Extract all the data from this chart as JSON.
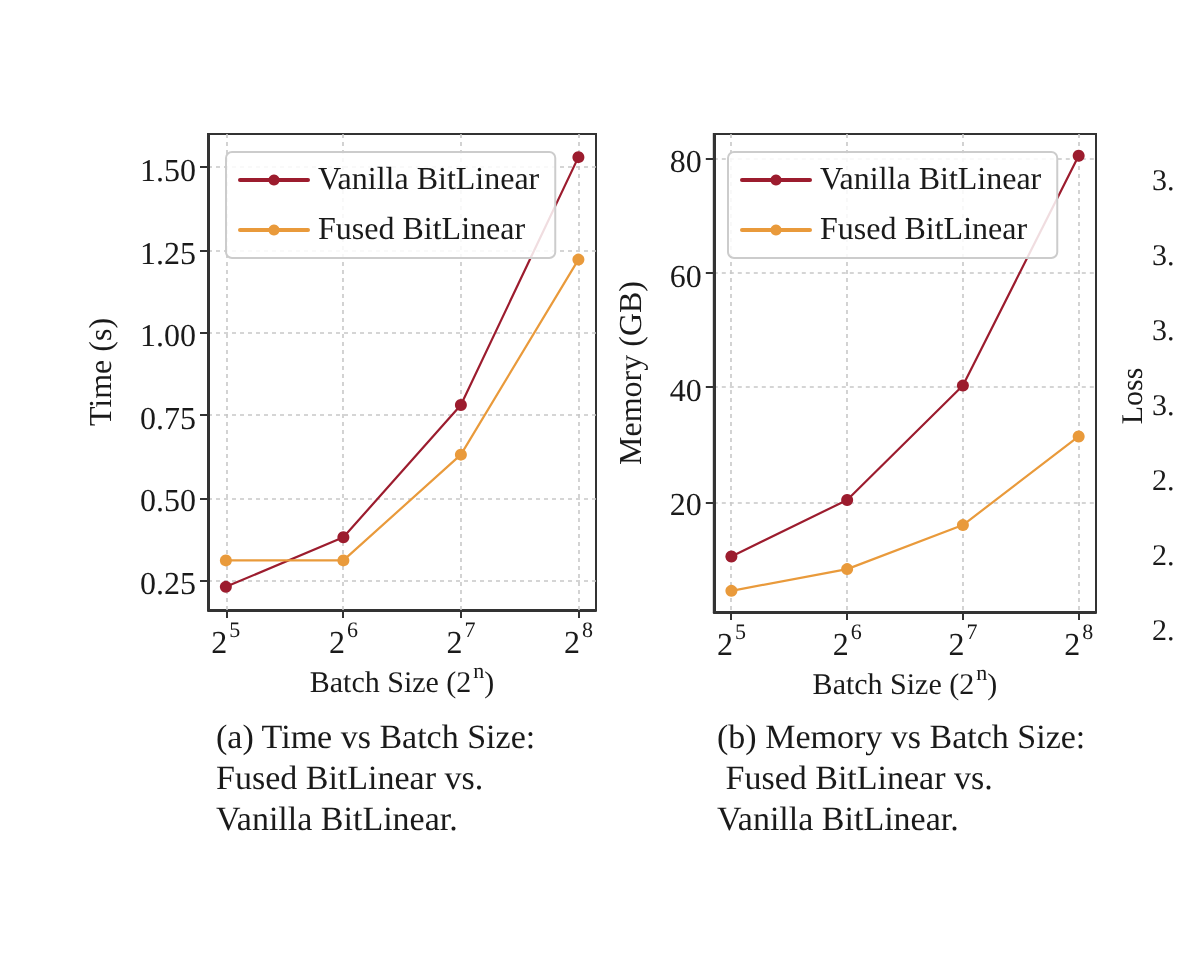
{
  "chart_data": [
    {
      "type": "line",
      "xlabel": "Batch Size (2$^{n}$)",
      "ylabel": "Time (s)",
      "x": [
        32,
        64,
        128,
        256
      ],
      "log": "x",
      "xlim": [
        28.8,
        284
      ],
      "xticks": [
        {
          "value": 32,
          "label": "2$^{5}$"
        },
        {
          "value": 64,
          "label": "2$^{6}$"
        },
        {
          "value": 128,
          "label": "2$^{7}$"
        },
        {
          "value": 256,
          "label": "2$^{8}$"
        }
      ],
      "ylim": [
        0.16,
        1.6
      ],
      "yticks": [
        0.25,
        {
          "value": 0.5,
          "label": "0.50"
        },
        0.75,
        {
          "value": 1,
          "label": "1.00"
        },
        1.25,
        {
          "value": 1.5,
          "label": "1.50"
        }
      ],
      "series": [
        {
          "name": "Vanilla BitLinear",
          "color": "#9c1c2e",
          "values": [
            0.23,
            0.38,
            0.78,
            1.53
          ]
        },
        {
          "name": "Fused BitLinear",
          "color": "#e99a3b",
          "values": [
            0.31,
            0.31,
            0.63,
            1.22
          ]
        }
      ],
      "marker": "circle",
      "grid": true,
      "legend": "top left",
      "annotations": [
        "(a) Time vs Batch Size: Fused BitLinear vs. Vanilla BitLinear."
      ]
    },
    {
      "type": "line",
      "xlabel": "Batch Size (2$^{n}$)",
      "ylabel": "Memory (GB)",
      "x": [
        32,
        64,
        128,
        256
      ],
      "log": "x",
      "xlim": [
        28.8,
        284
      ],
      "xticks": [
        {
          "value": 32,
          "label": "2$^{5}$"
        },
        {
          "value": 64,
          "label": "2$^{6}$"
        },
        {
          "value": 128,
          "label": "2$^{7}$"
        },
        {
          "value": 256,
          "label": "2$^{8}$"
        }
      ],
      "ylim": [
        0.7,
        84.3
      ],
      "yticks": [
        20,
        40,
        60,
        80
      ],
      "series": [
        {
          "name": "Vanilla BitLinear",
          "color": "#9c1c2e",
          "values": [
            10.4,
            20.3,
            40.3,
            80.5
          ]
        },
        {
          "name": "Fused BitLinear",
          "color": "#e99a3b",
          "values": [
            4.4,
            8.2,
            15.9,
            31.4
          ]
        }
      ],
      "marker": "circle",
      "grid": true,
      "legend": "top left",
      "annotations": [
        "(b) Memory vs Batch Size: Fused BitLinear vs. Vanilla BitLinear."
      ]
    },
    {
      "type": "other",
      "ylabel": "Loss",
      "annotations": [
        "3.",
        "3.",
        "3.",
        "3.",
        "2.",
        "2.",
        "2."
      ]
    }
  ]
}
